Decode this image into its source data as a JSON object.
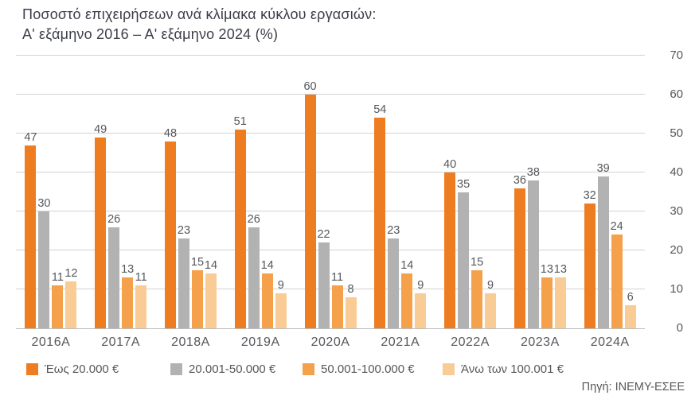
{
  "title": {
    "line1": "Ποσοστό επιχειρήσεων ανά κλίμακα κύκλου εργασιών:",
    "line2": "Α' εξάμηνο 2016 – Α' εξάμηνο 2024 (%)"
  },
  "source": "Πηγή: ΙΝΕΜΥ-ΕΣΕΕ",
  "colors": {
    "series1": "#ee7d22",
    "series2": "#b2b2b2",
    "series3": "#f5a04b",
    "series4": "#f9cb95",
    "gridline": "#d2d2d2",
    "axis_text": "#55575b",
    "title_text": "#3c3e49"
  },
  "chart_data": {
    "type": "bar",
    "title": "Ποσοστό επιχειρήσεων ανά κλίμακα κύκλου εργασιών: Α' εξάμηνο 2016 – Α' εξάμηνο 2024 (%)",
    "categories": [
      "2016A",
      "2017A",
      "2018A",
      "2019A",
      "2020A",
      "2021A",
      "2022A",
      "2023A",
      "2024A"
    ],
    "series": [
      {
        "name": "Έως 20.000 €",
        "color": "#ee7d22",
        "values": [
          47,
          49,
          48,
          51,
          60,
          54,
          40,
          36,
          32
        ]
      },
      {
        "name": "20.001-50.000 €",
        "color": "#b2b2b2",
        "values": [
          30,
          26,
          23,
          26,
          22,
          23,
          35,
          38,
          39
        ]
      },
      {
        "name": "50.001-100.000 €",
        "color": "#f5a04b",
        "values": [
          11,
          13,
          15,
          14,
          11,
          14,
          15,
          13,
          24
        ]
      },
      {
        "name": "Άνω των 100.001 €",
        "color": "#f9cb95",
        "values": [
          12,
          11,
          14,
          9,
          8,
          9,
          9,
          13,
          6
        ]
      }
    ],
    "xlabel": "",
    "ylabel": "",
    "ylim": [
      0,
      70
    ],
    "yticks": [
      0,
      10,
      20,
      30,
      40,
      50,
      60,
      70
    ],
    "grid": true,
    "value_labels": true,
    "legend_position": "bottom",
    "y_axis_side": "right"
  }
}
